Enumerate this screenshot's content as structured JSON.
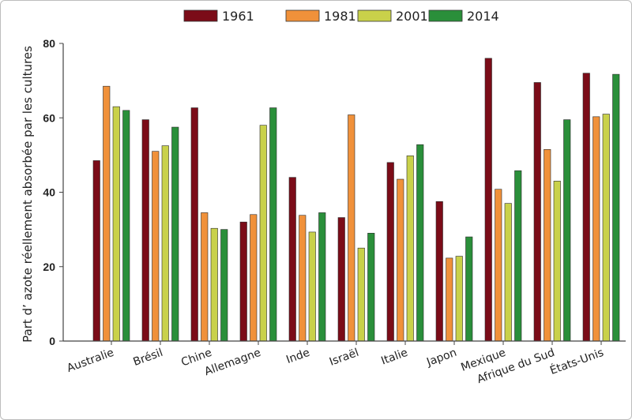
{
  "chart_data": {
    "type": "bar",
    "ylabel": "Part d’   azote réellement absorbée par les cultures",
    "ylim": [
      0,
      80
    ],
    "yticks": [
      0,
      20,
      40,
      60,
      80
    ],
    "grid": false,
    "legend_position": "top",
    "categories": [
      "Australie",
      "Brésil",
      "Chine",
      "Allemagne",
      "Inde",
      "Israël",
      "Italie",
      "Japon",
      "Mexique",
      "Afrique du Sud",
      "États-Unis"
    ],
    "series": [
      {
        "name": "1961",
        "color": "#7b0c18",
        "values": [
          48.5,
          59.5,
          62.7,
          32.0,
          44.0,
          33.2,
          48.0,
          37.5,
          76.0,
          69.5,
          72.0
        ]
      },
      {
        "name": "1981",
        "color": "#f0913a",
        "values": [
          68.5,
          51.0,
          34.5,
          34.0,
          33.8,
          60.8,
          43.5,
          22.3,
          40.8,
          51.5,
          60.3
        ]
      },
      {
        "name": "2001",
        "color": "#c9d14a",
        "values": [
          63.0,
          52.5,
          30.3,
          58.0,
          29.3,
          25.0,
          49.8,
          22.8,
          37.0,
          43.0,
          61.0
        ]
      },
      {
        "name": "2014",
        "color": "#2a8f3a",
        "values": [
          62.0,
          57.5,
          30.0,
          62.7,
          34.5,
          29.0,
          52.8,
          28.0,
          45.8,
          59.5,
          71.7
        ]
      }
    ]
  }
}
